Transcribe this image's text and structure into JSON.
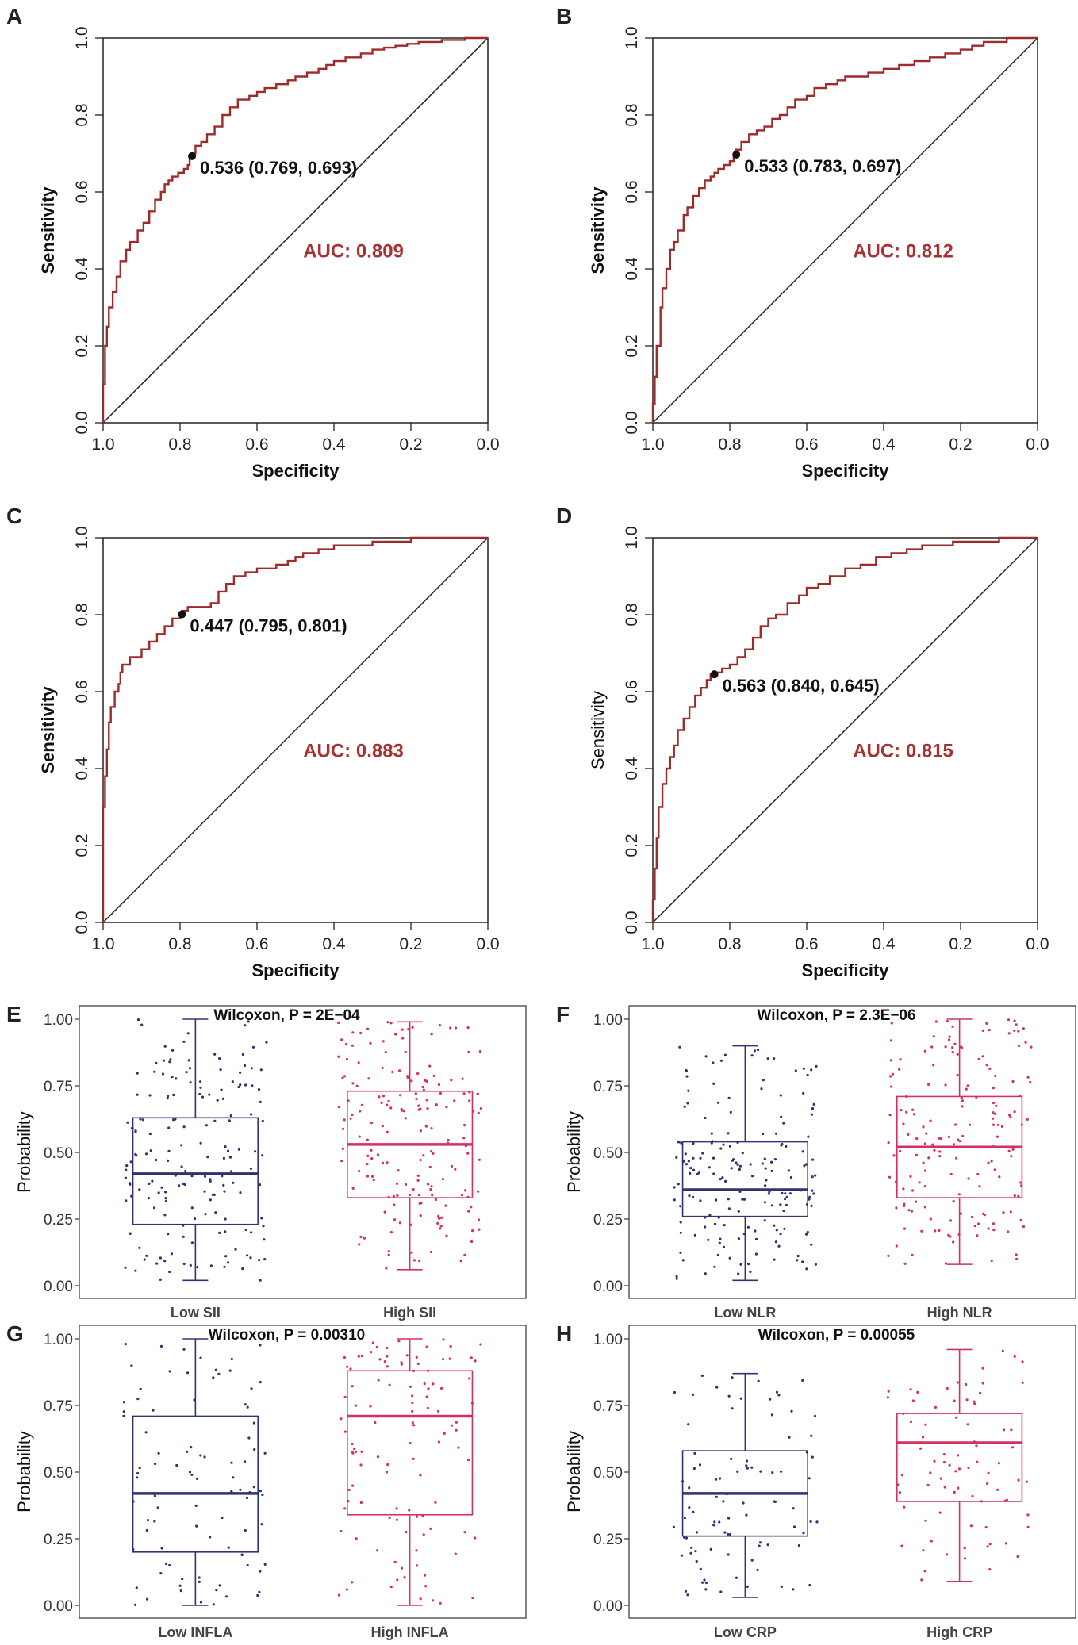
{
  "colors": {
    "roc": "#9e2a2a",
    "low": "#2e3470",
    "high": "#d6305f",
    "axis": "#222222"
  },
  "chart_data": [
    {
      "panel": "A",
      "type": "line",
      "title": "",
      "xlabel": "Specificity",
      "ylabel": "Sensitivity",
      "ylabel_bold": true,
      "xlim": [
        1.0,
        0.0
      ],
      "ylim": [
        0.0,
        1.0
      ],
      "x_ticks": [
        "1.0",
        "0.8",
        "0.6",
        "0.4",
        "0.2",
        "0.0"
      ],
      "y_ticks": [
        "0.0",
        "0.2",
        "0.4",
        "0.6",
        "0.8",
        "1.0"
      ],
      "auc_text": "AUC: 0.809",
      "cutoff_text": "0.536 (0.769, 0.693)",
      "cutoff": {
        "specificity": 0.769,
        "sensitivity": 0.693
      },
      "series": [
        {
          "name": "ROC",
          "specificity": [
            1.0,
            0.995,
            0.99,
            0.985,
            0.975,
            0.965,
            0.955,
            0.94,
            0.93,
            0.91,
            0.895,
            0.88,
            0.865,
            0.85,
            0.84,
            0.83,
            0.82,
            0.805,
            0.79,
            0.78,
            0.775,
            0.769,
            0.76,
            0.745,
            0.73,
            0.71,
            0.69,
            0.67,
            0.65,
            0.62,
            0.6,
            0.58,
            0.55,
            0.52,
            0.5,
            0.47,
            0.44,
            0.42,
            0.4,
            0.37,
            0.33,
            0.3,
            0.27,
            0.24,
            0.21,
            0.18,
            0.15,
            0.12,
            0.09,
            0.06,
            0.03,
            0.0
          ],
          "sensitivity": [
            0.0,
            0.1,
            0.2,
            0.25,
            0.3,
            0.34,
            0.38,
            0.42,
            0.45,
            0.47,
            0.5,
            0.52,
            0.55,
            0.58,
            0.6,
            0.62,
            0.63,
            0.64,
            0.65,
            0.66,
            0.67,
            0.693,
            0.7,
            0.72,
            0.73,
            0.75,
            0.77,
            0.8,
            0.82,
            0.84,
            0.85,
            0.86,
            0.87,
            0.88,
            0.89,
            0.9,
            0.91,
            0.92,
            0.93,
            0.94,
            0.95,
            0.96,
            0.97,
            0.975,
            0.98,
            0.985,
            0.99,
            0.99,
            0.995,
            0.995,
            1.0,
            1.0
          ]
        }
      ]
    },
    {
      "panel": "B",
      "type": "line",
      "title": "",
      "xlabel": "Specificity",
      "ylabel": "Sensitivity",
      "ylabel_bold": true,
      "xlim": [
        1.0,
        0.0
      ],
      "ylim": [
        0.0,
        1.0
      ],
      "x_ticks": [
        "1.0",
        "0.8",
        "0.6",
        "0.4",
        "0.2",
        "0.0"
      ],
      "y_ticks": [
        "0.0",
        "0.2",
        "0.4",
        "0.6",
        "0.8",
        "1.0"
      ],
      "auc_text": "AUC: 0.812",
      "cutoff_text": "0.533 (0.783, 0.697)",
      "cutoff": {
        "specificity": 0.783,
        "sensitivity": 0.697
      },
      "series": [
        {
          "name": "ROC",
          "specificity": [
            1.0,
            0.995,
            0.99,
            0.98,
            0.975,
            0.965,
            0.955,
            0.945,
            0.935,
            0.92,
            0.91,
            0.895,
            0.88,
            0.865,
            0.85,
            0.84,
            0.83,
            0.815,
            0.8,
            0.79,
            0.783,
            0.77,
            0.75,
            0.73,
            0.71,
            0.69,
            0.67,
            0.65,
            0.63,
            0.6,
            0.58,
            0.55,
            0.52,
            0.5,
            0.47,
            0.44,
            0.4,
            0.36,
            0.32,
            0.28,
            0.24,
            0.2,
            0.17,
            0.14,
            0.11,
            0.08,
            0.05,
            0.02,
            0.0
          ],
          "sensitivity": [
            0.0,
            0.05,
            0.12,
            0.2,
            0.3,
            0.35,
            0.4,
            0.45,
            0.47,
            0.5,
            0.54,
            0.56,
            0.59,
            0.61,
            0.63,
            0.64,
            0.65,
            0.66,
            0.67,
            0.68,
            0.697,
            0.71,
            0.73,
            0.75,
            0.76,
            0.77,
            0.79,
            0.8,
            0.82,
            0.84,
            0.85,
            0.87,
            0.88,
            0.89,
            0.9,
            0.9,
            0.91,
            0.92,
            0.93,
            0.94,
            0.95,
            0.96,
            0.97,
            0.98,
            0.99,
            0.99,
            1.0,
            1.0,
            1.0
          ]
        }
      ]
    },
    {
      "panel": "C",
      "type": "line",
      "title": "",
      "xlabel": "Specificity",
      "ylabel": "Sensitivity",
      "ylabel_bold": true,
      "xlim": [
        1.0,
        0.0
      ],
      "ylim": [
        0.0,
        1.0
      ],
      "x_ticks": [
        "1.0",
        "0.8",
        "0.6",
        "0.4",
        "0.2",
        "0.0"
      ],
      "y_ticks": [
        "0.0",
        "0.2",
        "0.4",
        "0.6",
        "0.8",
        "1.0"
      ],
      "auc_text": "AUC: 0.883",
      "cutoff_text": "0.447 (0.795, 0.801)",
      "cutoff": {
        "specificity": 0.795,
        "sensitivity": 0.801
      },
      "series": [
        {
          "name": "ROC",
          "specificity": [
            1.0,
            1.0,
            0.995,
            0.99,
            0.985,
            0.98,
            0.97,
            0.96,
            0.955,
            0.95,
            0.94,
            0.93,
            0.9,
            0.88,
            0.86,
            0.84,
            0.82,
            0.8,
            0.795,
            0.78,
            0.76,
            0.72,
            0.7,
            0.68,
            0.66,
            0.63,
            0.6,
            0.55,
            0.52,
            0.5,
            0.48,
            0.44,
            0.4,
            0.35,
            0.3,
            0.25,
            0.2,
            0.15,
            0.1,
            0.05,
            0.0
          ],
          "sensitivity": [
            0.0,
            0.24,
            0.3,
            0.38,
            0.45,
            0.52,
            0.56,
            0.6,
            0.62,
            0.65,
            0.67,
            0.67,
            0.69,
            0.71,
            0.73,
            0.75,
            0.77,
            0.79,
            0.801,
            0.81,
            0.82,
            0.82,
            0.83,
            0.86,
            0.88,
            0.9,
            0.91,
            0.92,
            0.93,
            0.94,
            0.95,
            0.96,
            0.97,
            0.98,
            0.98,
            0.99,
            0.99,
            1.0,
            1.0,
            1.0,
            1.0
          ]
        }
      ]
    },
    {
      "panel": "D",
      "type": "line",
      "title": "",
      "xlabel": "Specificity",
      "ylabel": "Sensitivity",
      "ylabel_bold": false,
      "xlim": [
        1.0,
        0.0
      ],
      "ylim": [
        0.0,
        1.0
      ],
      "x_ticks": [
        "1.0",
        "0.8",
        "0.6",
        "0.4",
        "0.2",
        "0.0"
      ],
      "y_ticks": [
        "0.0",
        "0.2",
        "0.4",
        "0.6",
        "0.8",
        "1.0"
      ],
      "auc_text": "AUC: 0.815",
      "cutoff_text": "0.563 (0.840, 0.645)",
      "cutoff": {
        "specificity": 0.84,
        "sensitivity": 0.645
      },
      "series": [
        {
          "name": "ROC",
          "specificity": [
            1.0,
            0.995,
            0.99,
            0.985,
            0.975,
            0.965,
            0.955,
            0.945,
            0.935,
            0.92,
            0.905,
            0.89,
            0.875,
            0.86,
            0.85,
            0.84,
            0.82,
            0.8,
            0.78,
            0.76,
            0.74,
            0.72,
            0.7,
            0.68,
            0.65,
            0.62,
            0.6,
            0.57,
            0.54,
            0.5,
            0.46,
            0.42,
            0.38,
            0.34,
            0.3,
            0.26,
            0.22,
            0.18,
            0.14,
            0.1,
            0.06,
            0.03,
            0.0
          ],
          "sensitivity": [
            0.0,
            0.06,
            0.14,
            0.22,
            0.3,
            0.36,
            0.4,
            0.43,
            0.46,
            0.5,
            0.53,
            0.56,
            0.59,
            0.61,
            0.63,
            0.645,
            0.65,
            0.66,
            0.67,
            0.69,
            0.71,
            0.74,
            0.77,
            0.79,
            0.8,
            0.83,
            0.85,
            0.87,
            0.88,
            0.9,
            0.92,
            0.93,
            0.95,
            0.96,
            0.97,
            0.98,
            0.98,
            0.99,
            0.99,
            0.99,
            1.0,
            1.0,
            1.0
          ]
        }
      ]
    },
    {
      "panel": "E",
      "type": "box",
      "title": "Wilcoxon, P = 2E−04",
      "ylabel": "Probability",
      "ylim": [
        0.0,
        1.0
      ],
      "y_ticks": [
        "0.00",
        "0.25",
        "0.50",
        "0.75",
        "1.00"
      ],
      "categories": [
        "Low SII",
        "High SII"
      ],
      "series": [
        {
          "name": "Low SII",
          "color": "low",
          "whisker_low": 0.02,
          "q1": 0.23,
          "median": 0.42,
          "q3": 0.63,
          "whisker_high": 1.0,
          "n_points": 170
        },
        {
          "name": "High SII",
          "color": "high",
          "whisker_low": 0.06,
          "q1": 0.33,
          "median": 0.53,
          "q3": 0.73,
          "whisker_high": 0.99,
          "n_points": 180
        }
      ]
    },
    {
      "panel": "F",
      "type": "box",
      "title": "Wilcoxon, P = 2.3E−06",
      "ylabel": "Probability",
      "ylim": [
        0.0,
        1.0
      ],
      "y_ticks": [
        "0.00",
        "0.25",
        "0.50",
        "0.75",
        "1.00"
      ],
      "categories": [
        "Low NLR",
        "High NLR"
      ],
      "series": [
        {
          "name": "Low NLR",
          "color": "low",
          "whisker_low": 0.02,
          "q1": 0.26,
          "median": 0.36,
          "q3": 0.54,
          "whisker_high": 0.9,
          "n_points": 180
        },
        {
          "name": "High NLR",
          "color": "high",
          "whisker_low": 0.08,
          "q1": 0.33,
          "median": 0.52,
          "q3": 0.71,
          "whisker_high": 1.0,
          "n_points": 170
        }
      ]
    },
    {
      "panel": "G",
      "type": "box",
      "title": "Wilcoxon, P = 0.00310",
      "ylabel": "Probability",
      "ylim": [
        0.0,
        1.0
      ],
      "y_ticks": [
        "0.00",
        "0.25",
        "0.50",
        "0.75",
        "1.00"
      ],
      "categories": [
        "Low INFLA",
        "High INFLA"
      ],
      "series": [
        {
          "name": "Low INFLA",
          "color": "low",
          "whisker_low": 0.0,
          "q1": 0.2,
          "median": 0.42,
          "q3": 0.71,
          "whisker_high": 1.0,
          "n_points": 90
        },
        {
          "name": "High INFLA",
          "color": "high",
          "whisker_low": 0.0,
          "q1": 0.34,
          "median": 0.71,
          "q3": 0.88,
          "whisker_high": 1.0,
          "n_points": 110
        }
      ]
    },
    {
      "panel": "H",
      "type": "box",
      "title": "Wilcoxon, P = 0.00055",
      "ylabel": "Probability",
      "ylim": [
        0.0,
        1.0
      ],
      "y_ticks": [
        "0.00",
        "0.25",
        "0.50",
        "0.75",
        "1.00"
      ],
      "categories": [
        "Low CRP",
        "High CRP"
      ],
      "series": [
        {
          "name": "Low CRP",
          "color": "low",
          "whisker_low": 0.03,
          "q1": 0.26,
          "median": 0.42,
          "q3": 0.58,
          "whisker_high": 0.87,
          "n_points": 90
        },
        {
          "name": "High CRP",
          "color": "high",
          "whisker_low": 0.09,
          "q1": 0.39,
          "median": 0.61,
          "q3": 0.72,
          "whisker_high": 0.96,
          "n_points": 80
        }
      ]
    }
  ]
}
